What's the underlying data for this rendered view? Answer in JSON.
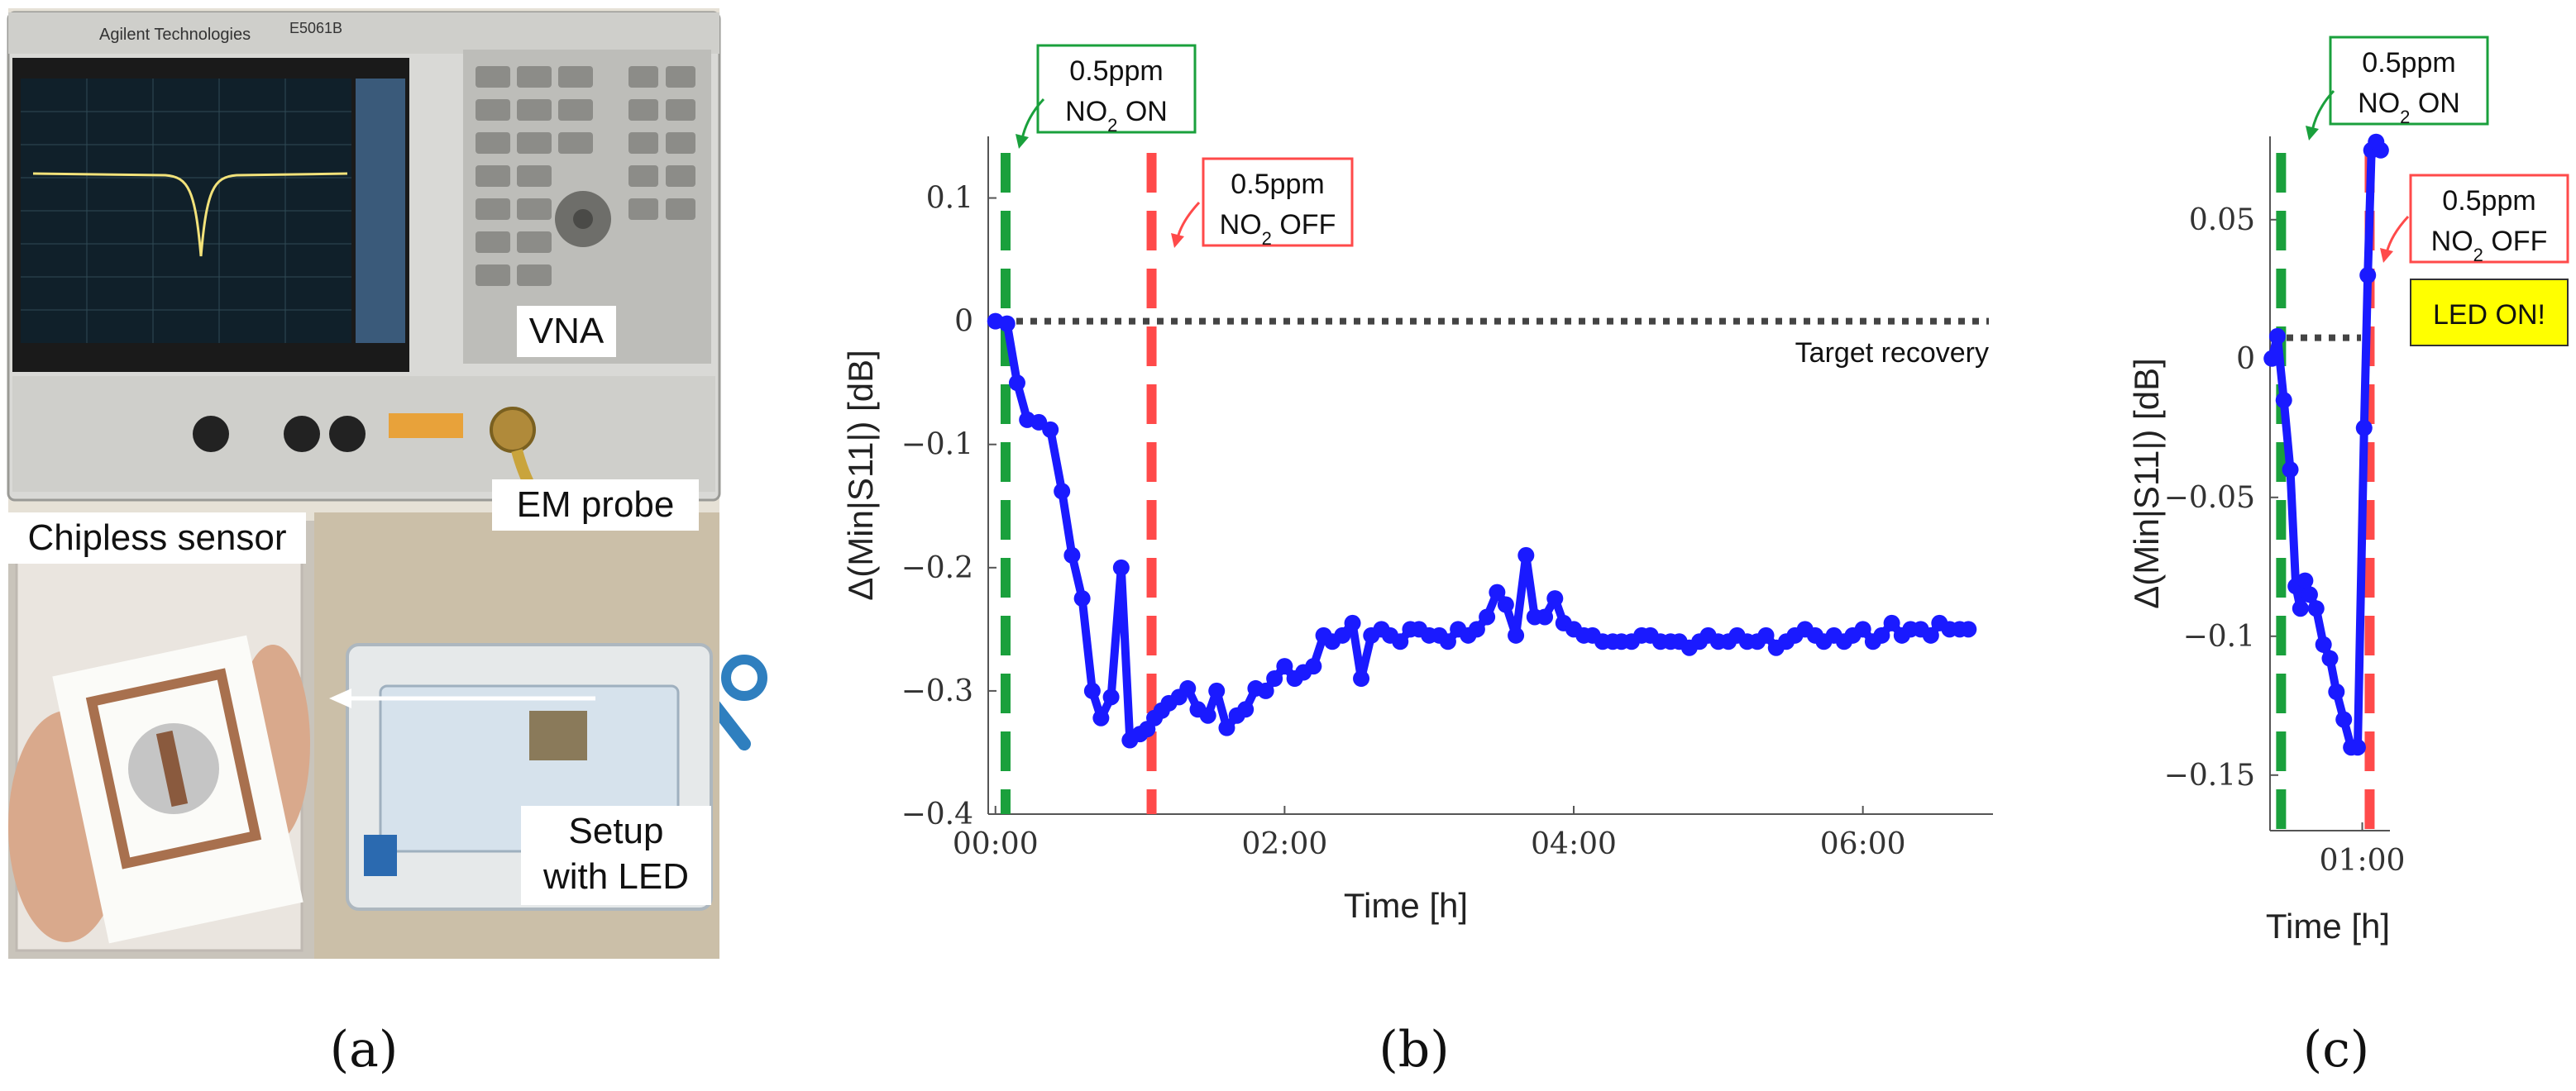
{
  "photo": {
    "labels": {
      "vna": "VNA",
      "em_probe": "EM probe",
      "chipless_sensor": "Chipless sensor",
      "setup_line1": "Setup",
      "setup_line2": "with LED"
    },
    "screen_text": {
      "brand": "Agilent Technologies",
      "model": "E5061B"
    }
  },
  "panel_labels": {
    "a": "(a)",
    "b": "(b)",
    "c": "(c)"
  },
  "annotations": {
    "on_line1": "0.5ppm",
    "on_line2": "NO",
    "on_sub": "2",
    "on_suffix": " ON",
    "off_line1": "0.5ppm",
    "off_line2": "NO",
    "off_sub": "2",
    "off_suffix": " OFF",
    "target_recovery": "Target recovery",
    "led_on": "LED ON!"
  },
  "colors": {
    "series": "#1a1aff",
    "on_line": "#1aa03c",
    "off_line": "#ff4a4a",
    "target": "#444444",
    "on_box": "#1aa03c",
    "off_box": "#ff4a4a",
    "led_box_fill": "#ffff00"
  },
  "chart_data": [
    {
      "type": "line",
      "panel": "b",
      "xlabel": "Time [h]",
      "ylabel": "Δ(Min|S11|) [dB]",
      "xlim": [
        -0.05,
        6.9
      ],
      "ylim": [
        -0.4,
        0.15
      ],
      "xticks": [
        0,
        2,
        4,
        6
      ],
      "xtick_labels": [
        "00:00",
        "02:00",
        "04:00",
        "06:00"
      ],
      "yticks": [
        0.1,
        0,
        -0.1,
        -0.2,
        -0.3,
        -0.4
      ],
      "ytick_labels": [
        "0.1",
        "0",
        "−0.1",
        "−0.2",
        "−0.3",
        "−0.4"
      ],
      "gas_on_time": 0.07,
      "gas_off_time": 1.08,
      "target_recovery": 0,
      "series": [
        {
          "name": "Δ(Min|S11|)",
          "x": [
            0,
            0.08,
            0.15,
            0.22,
            0.3,
            0.38,
            0.46,
            0.53,
            0.6,
            0.67,
            0.73,
            0.8,
            0.87,
            0.93,
            1.0,
            1.05,
            1.1,
            1.15,
            1.2,
            1.27,
            1.33,
            1.4,
            1.47,
            1.53,
            1.6,
            1.67,
            1.73,
            1.8,
            1.87,
            1.93,
            2.0,
            2.07,
            2.13,
            2.2,
            2.27,
            2.33,
            2.4,
            2.47,
            2.53,
            2.6,
            2.67,
            2.73,
            2.8,
            2.87,
            2.93,
            3.0,
            3.07,
            3.13,
            3.2,
            3.27,
            3.33,
            3.4,
            3.47,
            3.53,
            3.6,
            3.67,
            3.73,
            3.8,
            3.87,
            3.93,
            4.0,
            4.07,
            4.13,
            4.2,
            4.27,
            4.33,
            4.4,
            4.47,
            4.53,
            4.6,
            4.67,
            4.73,
            4.8,
            4.87,
            4.93,
            5.0,
            5.07,
            5.13,
            5.2,
            5.27,
            5.33,
            5.4,
            5.47,
            5.53,
            5.6,
            5.67,
            5.73,
            5.8,
            5.87,
            5.93,
            6.0,
            6.07,
            6.13,
            6.2,
            6.27,
            6.33,
            6.4,
            6.47,
            6.53,
            6.6,
            6.67,
            6.73
          ],
          "values": [
            0.0,
            -0.002,
            -0.05,
            -0.08,
            -0.082,
            -0.088,
            -0.138,
            -0.19,
            -0.225,
            -0.3,
            -0.322,
            -0.305,
            -0.2,
            -0.34,
            -0.335,
            -0.331,
            -0.322,
            -0.316,
            -0.31,
            -0.305,
            -0.298,
            -0.315,
            -0.32,
            -0.3,
            -0.33,
            -0.32,
            -0.315,
            -0.298,
            -0.3,
            -0.29,
            -0.28,
            -0.29,
            -0.285,
            -0.28,
            -0.255,
            -0.26,
            -0.255,
            -0.245,
            -0.29,
            -0.255,
            -0.25,
            -0.255,
            -0.26,
            -0.25,
            -0.25,
            -0.255,
            -0.255,
            -0.26,
            -0.25,
            -0.255,
            -0.25,
            -0.24,
            -0.22,
            -0.23,
            -0.255,
            -0.19,
            -0.24,
            -0.24,
            -0.225,
            -0.245,
            -0.25,
            -0.255,
            -0.255,
            -0.26,
            -0.26,
            -0.26,
            -0.26,
            -0.255,
            -0.255,
            -0.26,
            -0.26,
            -0.26,
            -0.265,
            -0.26,
            -0.255,
            -0.26,
            -0.26,
            -0.255,
            -0.26,
            -0.26,
            -0.255,
            -0.265,
            -0.26,
            -0.255,
            -0.25,
            -0.255,
            -0.26,
            -0.255,
            -0.26,
            -0.255,
            -0.25,
            -0.26,
            -0.255,
            -0.245,
            -0.255,
            -0.25,
            -0.25,
            -0.255,
            -0.245,
            -0.25,
            -0.25,
            -0.25
          ]
        }
      ]
    },
    {
      "type": "line",
      "panel": "c",
      "xlabel": "Time [h]",
      "ylabel": "Δ(Min|S11|) [dB]",
      "xlim": [
        0.0,
        1.3
      ],
      "ylim": [
        -0.17,
        0.08
      ],
      "xticks": [
        1.0
      ],
      "xtick_labels": [
        "01:00"
      ],
      "yticks": [
        0.05,
        0,
        -0.05,
        -0.1,
        -0.15
      ],
      "ytick_labels": [
        "0.05",
        "0",
        "−0.05",
        "−0.1",
        "−0.15"
      ],
      "gas_on_time": 0.12,
      "gas_off_time": 1.08,
      "target_recovery": 0.0075,
      "series": [
        {
          "name": "Δ(Min|S11|)",
          "x": [
            0.02,
            0.08,
            0.15,
            0.22,
            0.28,
            0.33,
            0.38,
            0.43,
            0.5,
            0.58,
            0.65,
            0.72,
            0.8,
            0.88,
            0.95,
            1.02,
            1.06,
            1.1,
            1.15,
            1.2
          ],
          "values": [
            0.0,
            0.008,
            -0.015,
            -0.04,
            -0.082,
            -0.09,
            -0.08,
            -0.085,
            -0.09,
            -0.103,
            -0.108,
            -0.12,
            -0.13,
            -0.14,
            -0.14,
            -0.025,
            0.03,
            0.075,
            0.078,
            0.075
          ]
        }
      ]
    }
  ]
}
